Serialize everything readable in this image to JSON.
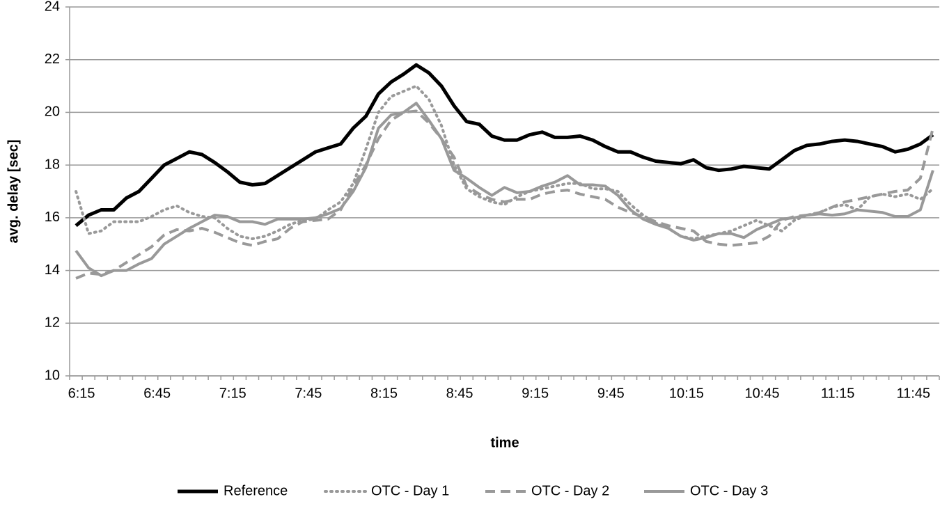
{
  "chart_data": {
    "type": "line",
    "xlabel": "time",
    "ylabel": "avg. delay [sec]",
    "categories": [
      "6:15",
      null,
      null,
      null,
      null,
      null,
      "6:45",
      null,
      null,
      null,
      null,
      null,
      "7:15",
      null,
      null,
      null,
      null,
      null,
      "7:45",
      null,
      null,
      null,
      null,
      null,
      "8:15",
      null,
      null,
      null,
      null,
      null,
      "8:45",
      null,
      null,
      null,
      null,
      null,
      "9:15",
      null,
      null,
      null,
      null,
      null,
      "9:45",
      null,
      null,
      null,
      null,
      null,
      "10:15",
      null,
      null,
      null,
      null,
      null,
      "10:45",
      null,
      null,
      null,
      null,
      null,
      "11:15",
      null,
      null,
      null,
      null,
      null,
      "11:45",
      null,
      null
    ],
    "ylim": [
      10,
      24
    ],
    "yticks": [
      10,
      12,
      14,
      16,
      18,
      20,
      22,
      24
    ],
    "grid": true,
    "legend": "bottom",
    "series": [
      {
        "name": "Reference",
        "color": "#000000",
        "dash": "solid",
        "width": 5,
        "values": [
          15.7,
          16.1,
          16.3,
          16.3,
          16.75,
          17.0,
          17.5,
          18.0,
          18.25,
          18.5,
          18.4,
          18.1,
          17.75,
          17.35,
          17.25,
          17.3,
          17.6,
          17.9,
          18.2,
          18.5,
          18.65,
          18.8,
          19.4,
          19.85,
          20.7,
          21.15,
          21.45,
          21.8,
          21.5,
          21.0,
          20.25,
          19.65,
          19.55,
          19.1,
          18.95,
          18.95,
          19.15,
          19.25,
          19.05,
          19.05,
          19.1,
          18.95,
          18.7,
          18.5,
          18.5,
          18.3,
          18.15,
          18.1,
          18.05,
          18.2,
          17.9,
          17.8,
          17.85,
          17.95,
          17.9,
          17.85,
          18.2,
          18.55,
          18.75,
          18.8,
          18.9,
          18.95,
          18.9,
          18.8,
          18.7,
          18.5,
          18.6,
          18.8,
          19.15
        ]
      },
      {
        "name": "OTC - Day 1",
        "color": "#999999",
        "dash": "dotted",
        "width": 4,
        "values": [
          17.0,
          15.4,
          15.5,
          15.85,
          15.85,
          15.85,
          16.05,
          16.3,
          16.45,
          16.2,
          16.05,
          16.0,
          15.6,
          15.3,
          15.2,
          15.3,
          15.5,
          15.75,
          15.9,
          15.95,
          16.3,
          16.6,
          17.3,
          18.6,
          20.0,
          20.6,
          20.8,
          21.0,
          20.5,
          19.5,
          18.0,
          17.1,
          16.8,
          16.6,
          16.5,
          16.8,
          17.0,
          17.1,
          17.2,
          17.3,
          17.3,
          17.1,
          17.1,
          17.0,
          16.5,
          16.1,
          15.8,
          15.6,
          15.3,
          15.2,
          15.3,
          15.4,
          15.5,
          15.7,
          15.9,
          15.7,
          15.5,
          15.9,
          16.1,
          16.2,
          16.4,
          16.5,
          16.3,
          16.8,
          16.9,
          16.8,
          16.9,
          16.7,
          17.1
        ]
      },
      {
        "name": "OTC - Day 2",
        "color": "#999999",
        "dash": "dashed",
        "width": 4,
        "values": [
          13.7,
          13.9,
          13.85,
          14.0,
          14.3,
          14.6,
          14.9,
          15.35,
          15.55,
          15.5,
          15.6,
          15.45,
          15.25,
          15.05,
          14.95,
          15.1,
          15.2,
          15.6,
          15.85,
          15.9,
          15.95,
          16.3,
          17.2,
          18.0,
          19.0,
          19.7,
          20.0,
          20.05,
          19.6,
          19.0,
          18.3,
          17.2,
          16.9,
          16.7,
          16.6,
          16.7,
          16.7,
          16.9,
          17.0,
          17.05,
          16.9,
          16.8,
          16.7,
          16.4,
          16.2,
          16.05,
          15.85,
          15.7,
          15.6,
          15.5,
          15.1,
          15.0,
          14.95,
          15.0,
          15.05,
          15.3,
          15.9,
          16.05,
          16.1,
          16.2,
          16.4,
          16.6,
          16.7,
          16.8,
          16.9,
          17.0,
          17.05,
          17.5,
          19.4
        ]
      },
      {
        "name": "OTC - Day 3",
        "color": "#999999",
        "dash": "solid",
        "width": 4,
        "values": [
          14.75,
          14.1,
          13.8,
          14.0,
          14.0,
          14.25,
          14.45,
          15.0,
          15.3,
          15.6,
          15.85,
          16.1,
          16.05,
          15.85,
          15.85,
          15.75,
          15.95,
          15.95,
          15.95,
          16.0,
          16.15,
          16.35,
          17.0,
          17.9,
          19.4,
          19.9,
          20.0,
          20.35,
          19.7,
          19.0,
          17.8,
          17.5,
          17.15,
          16.85,
          17.15,
          16.95,
          17.0,
          17.2,
          17.35,
          17.6,
          17.25,
          17.25,
          17.2,
          16.85,
          16.3,
          15.95,
          15.75,
          15.6,
          15.3,
          15.15,
          15.25,
          15.4,
          15.4,
          15.25,
          15.55,
          15.75,
          15.95,
          16.0,
          16.1,
          16.15,
          16.1,
          16.15,
          16.3,
          16.25,
          16.2,
          16.05,
          16.05,
          16.3,
          17.8
        ]
      }
    ]
  }
}
